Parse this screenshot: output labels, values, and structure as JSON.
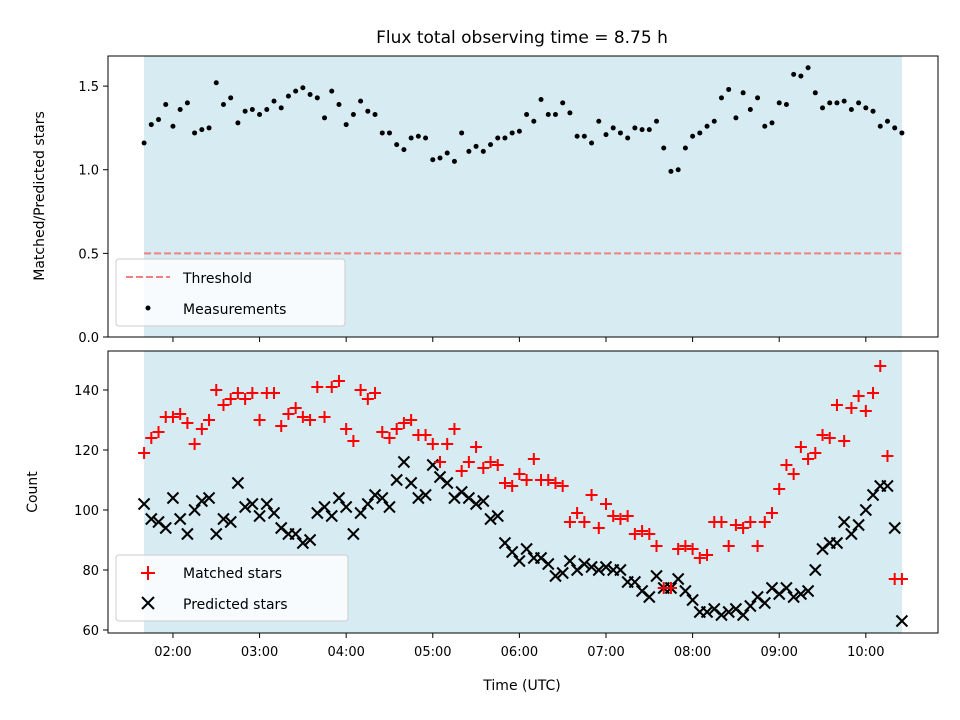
{
  "title": "Flux total observing time = 8.75 h",
  "colors": {
    "observing_band": "#add8e6",
    "threshold": "#f08080",
    "measurements": "#000000",
    "matched": "#ff0000",
    "predicted": "#000000"
  },
  "chart_data": [
    {
      "type": "scatter",
      "ylabel": "Matched/Predicted stars",
      "ylim": [
        0,
        1.68
      ],
      "yticks": [
        0.0,
        0.5,
        1.0,
        1.5
      ],
      "ytick_labels": [
        "0.0",
        "0.5",
        "1.0",
        "1.5"
      ],
      "observing_window": [
        "01:40",
        "10:25"
      ],
      "legend_position": "lower-left",
      "threshold": {
        "name": "Threshold",
        "value": 0.5,
        "style": "dashed"
      },
      "series": [
        {
          "name": "Measurements",
          "marker": "dot",
          "times": [
            "01:40",
            "01:45",
            "01:50",
            "01:55",
            "02:00",
            "02:05",
            "02:10",
            "02:15",
            "02:20",
            "02:25",
            "02:30",
            "02:35",
            "02:40",
            "02:45",
            "02:50",
            "02:55",
            "03:00",
            "03:05",
            "03:10",
            "03:15",
            "03:20",
            "03:25",
            "03:30",
            "03:35",
            "03:40",
            "03:45",
            "03:50",
            "03:55",
            "04:00",
            "04:05",
            "04:10",
            "04:15",
            "04:20",
            "04:25",
            "04:30",
            "04:35",
            "04:40",
            "04:45",
            "04:50",
            "04:55",
            "05:00",
            "05:05",
            "05:10",
            "05:15",
            "05:20",
            "05:25",
            "05:30",
            "05:35",
            "05:40",
            "05:45",
            "05:50",
            "05:55",
            "06:00",
            "06:05",
            "06:10",
            "06:15",
            "06:20",
            "06:25",
            "06:30",
            "06:35",
            "06:40",
            "06:45",
            "06:50",
            "06:55",
            "07:00",
            "07:05",
            "07:10",
            "07:15",
            "07:20",
            "07:25",
            "07:30",
            "07:35",
            "07:40",
            "07:45",
            "07:50",
            "07:55",
            "08:00",
            "08:05",
            "08:10",
            "08:15",
            "08:20",
            "08:25",
            "08:30",
            "08:35",
            "08:40",
            "08:45",
            "08:50",
            "08:55",
            "09:00",
            "09:05",
            "09:10",
            "09:15",
            "09:20",
            "09:25",
            "09:30",
            "09:35",
            "09:40",
            "09:45",
            "09:50",
            "09:55",
            "10:00",
            "10:05",
            "10:10",
            "10:15",
            "10:20",
            "10:25"
          ],
          "values": [
            1.16,
            1.27,
            1.3,
            1.39,
            1.26,
            1.36,
            1.4,
            1.22,
            1.24,
            1.25,
            1.52,
            1.39,
            1.43,
            1.28,
            1.35,
            1.36,
            1.33,
            1.36,
            1.41,
            1.37,
            1.44,
            1.47,
            1.49,
            1.45,
            1.43,
            1.31,
            1.47,
            1.39,
            1.27,
            1.33,
            1.41,
            1.35,
            1.33,
            1.22,
            1.22,
            1.15,
            1.12,
            1.19,
            1.2,
            1.19,
            1.06,
            1.07,
            1.1,
            1.05,
            1.22,
            1.11,
            1.14,
            1.11,
            1.15,
            1.19,
            1.19,
            1.22,
            1.23,
            1.33,
            1.29,
            1.42,
            1.33,
            1.33,
            1.4,
            1.34,
            1.2,
            1.2,
            1.16,
            1.29,
            1.21,
            1.25,
            1.22,
            1.19,
            1.25,
            1.24,
            1.24,
            1.29,
            1.13,
            0.99,
            1.0,
            1.13,
            1.2,
            1.22,
            1.26,
            1.29,
            1.43,
            1.48,
            1.31,
            1.46,
            1.36,
            1.43,
            1.26,
            1.28,
            1.4,
            1.39,
            1.57,
            1.56,
            1.61,
            1.46,
            1.37,
            1.4,
            1.4,
            1.41,
            1.36,
            1.4,
            1.37,
            1.35,
            1.26,
            1.29,
            1.25,
            1.22
          ]
        }
      ]
    },
    {
      "type": "scatter",
      "xlabel": "Time (UTC)",
      "ylabel": "Count",
      "ylim": [
        59,
        153
      ],
      "yticks": [
        60,
        80,
        100,
        120,
        140
      ],
      "ytick_labels": [
        "60",
        "80",
        "100",
        "120",
        "140"
      ],
      "xticks": [
        "02:00",
        "03:00",
        "04:00",
        "05:00",
        "06:00",
        "07:00",
        "08:00",
        "09:00",
        "10:00"
      ],
      "xlim": [
        "01:15",
        "10:50"
      ],
      "observing_window": [
        "01:40",
        "10:25"
      ],
      "legend_position": "lower-left",
      "series": [
        {
          "name": "Matched stars",
          "marker": "plus",
          "times": [
            "01:40",
            "01:45",
            "01:50",
            "01:55",
            "02:00",
            "02:05",
            "02:10",
            "02:15",
            "02:20",
            "02:25",
            "02:30",
            "02:35",
            "02:40",
            "02:45",
            "02:50",
            "02:55",
            "03:00",
            "03:05",
            "03:10",
            "03:15",
            "03:20",
            "03:25",
            "03:30",
            "03:35",
            "03:40",
            "03:45",
            "03:50",
            "03:55",
            "04:00",
            "04:05",
            "04:10",
            "04:15",
            "04:20",
            "04:25",
            "04:30",
            "04:35",
            "04:40",
            "04:45",
            "04:50",
            "04:55",
            "05:00",
            "05:05",
            "05:10",
            "05:15",
            "05:20",
            "05:25",
            "05:30",
            "05:35",
            "05:40",
            "05:45",
            "05:50",
            "05:55",
            "06:00",
            "06:05",
            "06:10",
            "06:15",
            "06:20",
            "06:25",
            "06:30",
            "06:35",
            "06:40",
            "06:45",
            "06:50",
            "06:55",
            "07:00",
            "07:05",
            "07:10",
            "07:15",
            "07:20",
            "07:25",
            "07:30",
            "07:35",
            "07:40",
            "07:45",
            "07:50",
            "07:55",
            "08:00",
            "08:05",
            "08:10",
            "08:15",
            "08:20",
            "08:25",
            "08:30",
            "08:35",
            "08:40",
            "08:45",
            "08:50",
            "08:55",
            "09:00",
            "09:05",
            "09:10",
            "09:15",
            "09:20",
            "09:25",
            "09:30",
            "09:35",
            "09:40",
            "09:45",
            "09:50",
            "09:55",
            "10:00",
            "10:05",
            "10:10",
            "10:15",
            "10:20",
            "10:25"
          ],
          "values": [
            119,
            124,
            126,
            131,
            131,
            132,
            129,
            122,
            127,
            130,
            140,
            135,
            137,
            139,
            137,
            139,
            130,
            139,
            139,
            128,
            132,
            134,
            131,
            130,
            141,
            131,
            141,
            143,
            127,
            123,
            140,
            137,
            139,
            126,
            124,
            127,
            129,
            130,
            125,
            125,
            122,
            116,
            122,
            127,
            113,
            116,
            121,
            114,
            116,
            115,
            109,
            108,
            112,
            110,
            117,
            110,
            110,
            109,
            108,
            96,
            99,
            96,
            105,
            94,
            102,
            98,
            97,
            98,
            92,
            93,
            92,
            88,
            74,
            74,
            87,
            88,
            87,
            84,
            85,
            96,
            96,
            88,
            95,
            94,
            96,
            88,
            96,
            99,
            107,
            115,
            112,
            121,
            117,
            119,
            125,
            124,
            135,
            123,
            134,
            138,
            133,
            139,
            148,
            118,
            77,
            77
          ]
        },
        {
          "name": "Predicted stars",
          "marker": "x",
          "times": [
            "01:40",
            "01:45",
            "01:50",
            "01:55",
            "02:00",
            "02:05",
            "02:10",
            "02:15",
            "02:20",
            "02:25",
            "02:30",
            "02:35",
            "02:40",
            "02:45",
            "02:50",
            "02:55",
            "03:00",
            "03:05",
            "03:10",
            "03:15",
            "03:20",
            "03:25",
            "03:30",
            "03:35",
            "03:40",
            "03:45",
            "03:50",
            "03:55",
            "04:00",
            "04:05",
            "04:10",
            "04:15",
            "04:20",
            "04:25",
            "04:30",
            "04:35",
            "04:40",
            "04:45",
            "04:50",
            "04:55",
            "05:00",
            "05:05",
            "05:10",
            "05:15",
            "05:20",
            "05:25",
            "05:30",
            "05:35",
            "05:40",
            "05:45",
            "05:50",
            "05:55",
            "06:00",
            "06:05",
            "06:10",
            "06:15",
            "06:20",
            "06:25",
            "06:30",
            "06:35",
            "06:40",
            "06:45",
            "06:50",
            "06:55",
            "07:00",
            "07:05",
            "07:10",
            "07:15",
            "07:20",
            "07:25",
            "07:30",
            "07:35",
            "07:40",
            "07:45",
            "07:50",
            "07:55",
            "08:00",
            "08:05",
            "08:10",
            "08:15",
            "08:20",
            "08:25",
            "08:30",
            "08:35",
            "08:40",
            "08:45",
            "08:50",
            "08:55",
            "09:00",
            "09:05",
            "09:10",
            "09:15",
            "09:20",
            "09:25",
            "09:30",
            "09:35",
            "09:40",
            "09:45",
            "09:50",
            "09:55",
            "10:00",
            "10:05",
            "10:10",
            "10:15",
            "10:20",
            "10:25"
          ],
          "values": [
            102,
            97,
            96,
            94,
            104,
            97,
            92,
            100,
            103,
            104,
            92,
            97,
            96,
            109,
            101,
            102,
            98,
            102,
            99,
            94,
            92,
            92,
            89,
            90,
            99,
            101,
            98,
            104,
            101,
            92,
            99,
            102,
            105,
            104,
            101,
            110,
            116,
            109,
            104,
            105,
            115,
            111,
            109,
            104,
            106,
            104,
            102,
            103,
            97,
            98,
            89,
            86,
            83,
            87,
            84,
            84,
            82,
            78,
            79,
            83,
            80,
            82,
            81,
            80,
            81,
            80,
            80,
            76,
            76,
            73,
            71,
            78,
            74,
            74,
            77,
            73,
            70,
            66,
            66,
            67,
            65,
            66,
            67,
            65,
            68,
            71,
            69,
            74,
            72,
            74,
            71,
            72,
            73,
            80,
            87,
            89,
            89,
            96,
            92,
            95,
            100,
            105,
            108,
            108,
            94,
            63
          ]
        }
      ]
    }
  ]
}
